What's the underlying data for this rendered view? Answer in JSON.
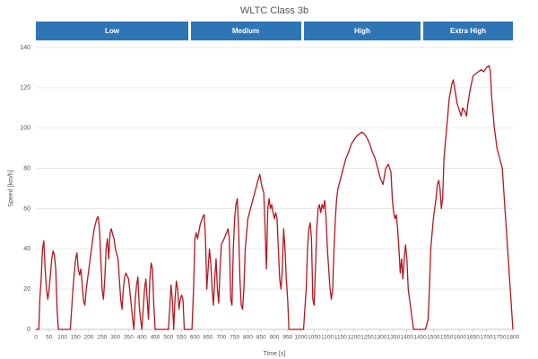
{
  "chart_data": {
    "type": "line",
    "title": "WLTC Class 3b",
    "phases": [
      "Low",
      "Medium",
      "High",
      "Extra High"
    ],
    "xlabel": "Time [s]",
    "ylabel": "Speed [km/h]",
    "color": "#b5161e",
    "grid": true,
    "xlim": [
      0,
      1800
    ],
    "ylim": [
      0,
      140
    ],
    "xticks": [
      0,
      50,
      100,
      150,
      200,
      250,
      300,
      350,
      400,
      450,
      500,
      550,
      600,
      650,
      700,
      750,
      800,
      850,
      900,
      950,
      1000,
      1050,
      1100,
      1150,
      1200,
      1250,
      1300,
      1350,
      1400,
      1450,
      1500,
      1550,
      1600,
      1650,
      1700,
      1750,
      1800
    ],
    "yticks": [
      0,
      20,
      40,
      60,
      80,
      100,
      120,
      140
    ],
    "x": [
      0,
      11,
      15,
      20,
      25,
      30,
      35,
      40,
      45,
      50,
      60,
      65,
      70,
      75,
      80,
      85,
      100,
      130,
      135,
      140,
      145,
      150,
      155,
      160,
      165,
      170,
      175,
      180,
      185,
      190,
      200,
      210,
      220,
      230,
      235,
      240,
      245,
      250,
      255,
      260,
      265,
      270,
      275,
      280,
      285,
      290,
      295,
      300,
      310,
      315,
      320,
      325,
      330,
      335,
      340,
      350,
      360,
      365,
      370,
      375,
      380,
      385,
      390,
      395,
      400,
      410,
      415,
      420,
      425,
      430,
      435,
      440,
      445,
      450,
      500,
      505,
      510,
      515,
      520,
      525,
      530,
      535,
      540,
      545,
      550,
      555,
      560,
      589,
      595,
      600,
      605,
      610,
      620,
      630,
      635,
      640,
      645,
      650,
      655,
      660,
      665,
      670,
      675,
      680,
      685,
      690,
      695,
      700,
      710,
      720,
      725,
      730,
      735,
      740,
      745,
      750,
      755,
      760,
      765,
      770,
      775,
      780,
      785,
      790,
      800,
      810,
      820,
      830,
      840,
      845,
      850,
      855,
      860,
      865,
      870,
      875,
      880,
      885,
      890,
      895,
      900,
      905,
      910,
      915,
      920,
      925,
      930,
      935,
      940,
      945,
      950,
      955,
      1010,
      1020,
      1025,
      1030,
      1035,
      1040,
      1045,
      1050,
      1055,
      1060,
      1065,
      1070,
      1075,
      1080,
      1085,
      1090,
      1095,
      1100,
      1105,
      1110,
      1115,
      1120,
      1125,
      1130,
      1135,
      1140,
      1150,
      1160,
      1170,
      1180,
      1190,
      1200,
      1210,
      1220,
      1230,
      1240,
      1250,
      1260,
      1270,
      1280,
      1290,
      1300,
      1310,
      1320,
      1330,
      1335,
      1340,
      1345,
      1350,
      1355,
      1360,
      1365,
      1370,
      1375,
      1380,
      1385,
      1390,
      1395,
      1400,
      1405,
      1410,
      1415,
      1420,
      1425,
      1470,
      1480,
      1485,
      1490,
      1500,
      1510,
      1515,
      1520,
      1525,
      1530,
      1535,
      1540,
      1550,
      1560,
      1570,
      1575,
      1580,
      1590,
      1600,
      1605,
      1610,
      1620,
      1625,
      1630,
      1640,
      1650,
      1660,
      1670,
      1680,
      1690,
      1700,
      1710,
      1715,
      1720,
      1730,
      1740,
      1750,
      1760,
      1770,
      1780,
      1790,
      1800
    ],
    "values": [
      0,
      0,
      15,
      25,
      40,
      44,
      30,
      20,
      15,
      20,
      35,
      39,
      37,
      30,
      10,
      0,
      0,
      0,
      10,
      20,
      28,
      35,
      38,
      30,
      27,
      30,
      22,
      14,
      12,
      20,
      30,
      40,
      50,
      55,
      56,
      50,
      35,
      20,
      15,
      25,
      40,
      45,
      35,
      48,
      50,
      47,
      45,
      40,
      35,
      25,
      15,
      10,
      20,
      26,
      28,
      25,
      12,
      5,
      0,
      15,
      22,
      26,
      12,
      5,
      0,
      20,
      25,
      15,
      5,
      25,
      33,
      30,
      12,
      0,
      0,
      10,
      22,
      15,
      0,
      15,
      24,
      20,
      10,
      15,
      17,
      15,
      0,
      0,
      20,
      45,
      48,
      45,
      52,
      56,
      57,
      45,
      20,
      30,
      40,
      33,
      20,
      12,
      25,
      35,
      20,
      13,
      30,
      42,
      45,
      48,
      50,
      45,
      15,
      12,
      40,
      55,
      62,
      65,
      50,
      25,
      12,
      10,
      20,
      40,
      55,
      60,
      65,
      70,
      75,
      77,
      73,
      70,
      68,
      50,
      30,
      60,
      65,
      60,
      62,
      58,
      55,
      58,
      55,
      40,
      25,
      20,
      30,
      50,
      40,
      25,
      15,
      0,
      0,
      20,
      40,
      50,
      53,
      45,
      15,
      12,
      30,
      50,
      60,
      62,
      58,
      62,
      60,
      64,
      55,
      40,
      30,
      20,
      15,
      20,
      40,
      55,
      65,
      70,
      75,
      80,
      85,
      88,
      92,
      94,
      96,
      97,
      98,
      97,
      95,
      92,
      88,
      85,
      80,
      75,
      72,
      80,
      82,
      80,
      78,
      65,
      58,
      55,
      57,
      50,
      40,
      28,
      35,
      25,
      35,
      42,
      35,
      20,
      15,
      10,
      5,
      0,
      0,
      5,
      20,
      40,
      55,
      65,
      72,
      74,
      70,
      60,
      65,
      85,
      100,
      115,
      122,
      124,
      120,
      112,
      108,
      106,
      110,
      108,
      106,
      112,
      120,
      126,
      127,
      128,
      129,
      128,
      130,
      131,
      128,
      115,
      100,
      90,
      85,
      80,
      60,
      40,
      20,
      0
    ]
  }
}
